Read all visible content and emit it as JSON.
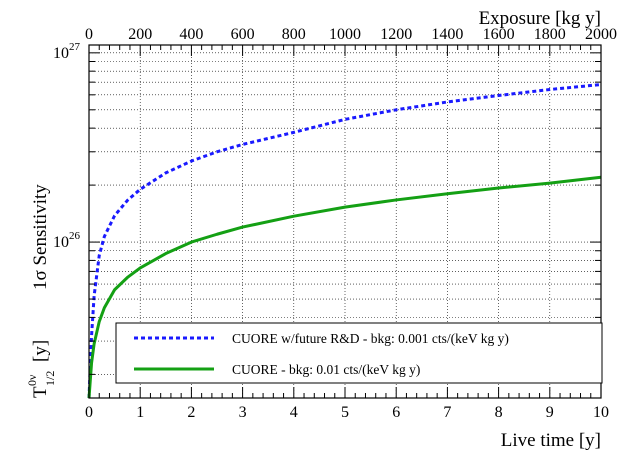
{
  "chart_data": {
    "type": "line",
    "xlabel": "Live time [y]",
    "x2label": "Exposure [kg y]",
    "ylabel": "1σ  Sensitivity",
    "ylabel_symbol": "T",
    "ylabel_sup": "0ν",
    "ylabel_sub": "1/2",
    "ylabel_unit": "[y]",
    "xlim": [
      0,
      10
    ],
    "x2lim": [
      0,
      2000
    ],
    "ylim": [
      1.5e+25,
      1.1e+27
    ],
    "yscale": "log",
    "grid": true,
    "legend_position": "bottom-right",
    "x_ticks": [
      "0",
      "1",
      "2",
      "3",
      "4",
      "5",
      "6",
      "7",
      "8",
      "9",
      "10"
    ],
    "x2_ticks": [
      "0",
      "200",
      "400",
      "600",
      "800",
      "1000",
      "1200",
      "1400",
      "1600",
      "1800",
      "2000"
    ],
    "y_ticks": [
      {
        "base": "10",
        "exp": "26",
        "value": 1e+26
      },
      {
        "base": "10",
        "exp": "27",
        "value": 1e+27
      }
    ],
    "series": [
      {
        "name": "CUORE w/future R&D - bkg: 0.001 cts/(keV kg y)",
        "style": "dashed",
        "color": "#1a1aff",
        "x": [
          0.0,
          0.05,
          0.1,
          0.2,
          0.3,
          0.5,
          0.75,
          1,
          1.5,
          2,
          2.5,
          3,
          4,
          5,
          6,
          7,
          8,
          9,
          10
        ],
        "y": [
          1.5e+25,
          3.2e+25,
          5.2e+25,
          8.5e+25,
          1.07e+26,
          1.38e+26,
          1.66e+26,
          1.9e+26,
          2.32e+26,
          2.68e+26,
          3e+26,
          3.28e+26,
          3.8e+26,
          4.45e+26,
          5e+26,
          5.5e+26,
          5.95e+26,
          6.4e+26,
          6.8e+26
        ]
      },
      {
        "name": "CUORE - bkg: 0.01 cts/(keV kg y)",
        "style": "solid",
        "color": "#14a014",
        "x": [
          0.0,
          0.05,
          0.1,
          0.2,
          0.3,
          0.5,
          0.75,
          1,
          1.5,
          2,
          2.5,
          3,
          4,
          5,
          6,
          7,
          8,
          9,
          10
        ],
        "y": [
          1.5e+25,
          2.3e+25,
          2.9e+25,
          3.8e+25,
          4.5e+25,
          5.6e+25,
          6.5e+25,
          7.3e+25,
          8.7e+25,
          1e+26,
          1.1e+26,
          1.2e+26,
          1.37e+26,
          1.53e+26,
          1.67e+26,
          1.8e+26,
          1.93e+26,
          2.05e+26,
          2.2e+26
        ]
      }
    ]
  }
}
